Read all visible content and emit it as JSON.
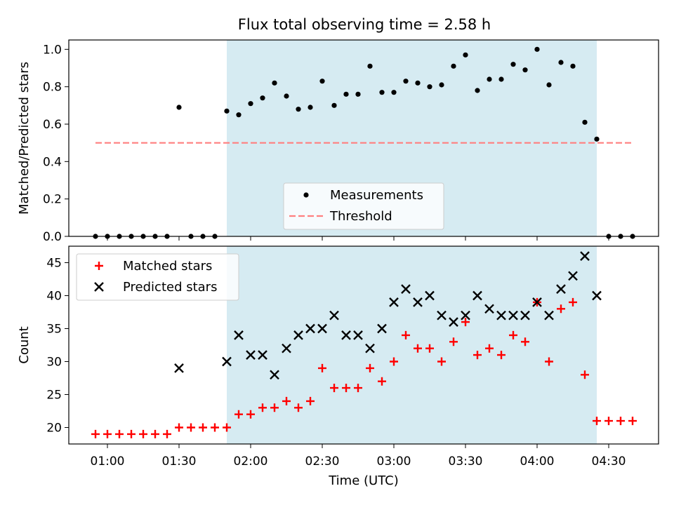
{
  "chart_data": [
    {
      "type": "scatter",
      "title": "Flux total observing time = 2.58 h",
      "ylabel": "Matched/Predicted stars",
      "xlabel": "",
      "ylim": [
        0,
        1.05
      ],
      "yticks": [
        "0.0",
        "0.2",
        "0.4",
        "0.6",
        "0.8",
        "1.0"
      ],
      "grid": false,
      "legend_position": "lower-center",
      "shaded_interval": [
        "01:50",
        "04:25"
      ],
      "shade_color": "#add8e6",
      "threshold": {
        "name": "Threshold",
        "value": 0.5,
        "x_start": "00:55",
        "x_end": "04:40",
        "color": "#ff7f7f"
      },
      "series": [
        {
          "name": "Measurements",
          "color": "#000000",
          "marker": "dot",
          "x": [
            "00:55",
            "01:00",
            "01:05",
            "01:10",
            "01:15",
            "01:20",
            "01:25",
            "01:30",
            "01:35",
            "01:40",
            "01:45",
            "01:50",
            "01:55",
            "02:00",
            "02:05",
            "02:10",
            "02:15",
            "02:20",
            "02:25",
            "02:30",
            "02:35",
            "02:40",
            "02:45",
            "02:50",
            "02:55",
            "03:00",
            "03:05",
            "03:10",
            "03:15",
            "03:20",
            "03:25",
            "03:30",
            "03:35",
            "03:40",
            "03:45",
            "03:50",
            "03:55",
            "04:00",
            "04:05",
            "04:10",
            "04:15",
            "04:20",
            "04:25",
            "04:30",
            "04:35",
            "04:40"
          ],
          "y": [
            0,
            0,
            0,
            0,
            0,
            0,
            0,
            0.69,
            0,
            0,
            0,
            0.67,
            0.65,
            0.71,
            0.74,
            0.82,
            0.75,
            0.68,
            0.69,
            0.83,
            0.7,
            0.76,
            0.76,
            0.91,
            0.77,
            0.77,
            0.83,
            0.82,
            0.8,
            0.81,
            0.91,
            0.97,
            0.78,
            0.84,
            0.84,
            0.92,
            0.89,
            1.0,
            0.81,
            0.93,
            0.91,
            0.61,
            0.52,
            0,
            0,
            0
          ]
        }
      ]
    },
    {
      "type": "scatter",
      "title": "",
      "ylabel": "Count",
      "xlabel": "Time (UTC)",
      "ylim": [
        17.5,
        47.5
      ],
      "yticks": [
        "20",
        "25",
        "30",
        "35",
        "40",
        "45"
      ],
      "xticks": [
        "01:00",
        "01:30",
        "02:00",
        "02:30",
        "03:00",
        "03:30",
        "04:00",
        "04:30"
      ],
      "grid": false,
      "legend_position": "top-left",
      "shaded_interval": [
        "01:50",
        "04:25"
      ],
      "shade_color": "#add8e6",
      "series": [
        {
          "name": "Matched stars",
          "color": "#ff0000",
          "marker": "plus",
          "x": [
            "00:55",
            "01:00",
            "01:05",
            "01:10",
            "01:15",
            "01:20",
            "01:25",
            "01:30",
            "01:35",
            "01:40",
            "01:45",
            "01:50",
            "01:55",
            "02:00",
            "02:05",
            "02:10",
            "02:15",
            "02:20",
            "02:25",
            "02:30",
            "02:35",
            "02:40",
            "02:45",
            "02:50",
            "02:55",
            "03:00",
            "03:05",
            "03:10",
            "03:15",
            "03:20",
            "03:25",
            "03:30",
            "03:35",
            "03:40",
            "03:45",
            "03:50",
            "03:55",
            "04:00",
            "04:05",
            "04:10",
            "04:15",
            "04:20",
            "04:25",
            "04:30",
            "04:35",
            "04:40"
          ],
          "y": [
            19,
            19,
            19,
            19,
            19,
            19,
            19,
            20,
            20,
            20,
            20,
            20,
            22,
            22,
            23,
            23,
            24,
            23,
            24,
            29,
            26,
            26,
            26,
            29,
            27,
            30,
            34,
            32,
            32,
            30,
            33,
            36,
            31,
            32,
            31,
            34,
            33,
            39,
            30,
            38,
            39,
            28,
            21,
            21,
            21,
            21
          ]
        },
        {
          "name": "Predicted stars",
          "color": "#000000",
          "marker": "x",
          "x": [
            "01:30",
            "01:50",
            "01:55",
            "02:00",
            "02:05",
            "02:10",
            "02:15",
            "02:20",
            "02:25",
            "02:30",
            "02:35",
            "02:40",
            "02:45",
            "02:50",
            "02:55",
            "03:00",
            "03:05",
            "03:10",
            "03:15",
            "03:20",
            "03:25",
            "03:30",
            "03:35",
            "03:40",
            "03:45",
            "03:50",
            "03:55",
            "04:00",
            "04:05",
            "04:10",
            "04:15",
            "04:20",
            "04:25"
          ],
          "y": [
            29,
            30,
            34,
            31,
            31,
            28,
            32,
            34,
            35,
            35,
            37,
            34,
            34,
            32,
            35,
            39,
            41,
            39,
            40,
            37,
            36,
            37,
            40,
            38,
            37,
            37,
            37,
            39,
            37,
            41,
            43,
            46,
            40
          ]
        }
      ]
    }
  ]
}
